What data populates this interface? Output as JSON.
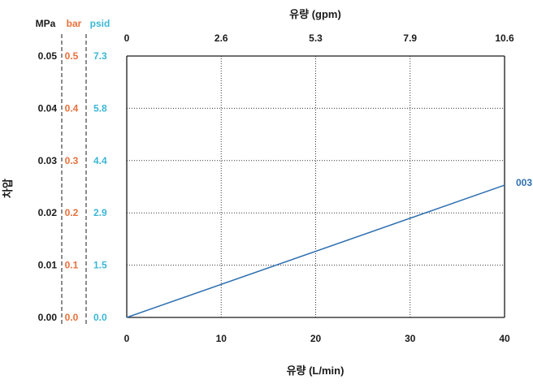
{
  "colors": {
    "line": "#2e6fb0",
    "axis": "#1a1a1a",
    "grid": "#333333",
    "mpa_text": "#1a1a1a",
    "bar_text": "#e8703a",
    "psid_text": "#3ab7d6"
  },
  "chart_data": {
    "type": "line",
    "xlabel_bottom": "유량 (L/min)",
    "xlabel_top": "유량 (gpm)",
    "ylabel": "차압",
    "x_ticks_bottom": [
      "0",
      "10",
      "20",
      "30",
      "40"
    ],
    "x_ticks_top": [
      "0",
      "2.6",
      "5.3",
      "7.9",
      "10.6"
    ],
    "xlim": [
      0,
      40
    ],
    "ylim": [
      0,
      0.05
    ],
    "grid": true,
    "grid_style": "dotted",
    "y_axes": [
      {
        "unit": "MPa",
        "ticks": [
          "0.00",
          "0.01",
          "0.02",
          "0.03",
          "0.04",
          "0.05"
        ]
      },
      {
        "unit": "bar",
        "ticks": [
          "0.0",
          "0.1",
          "0.2",
          "0.3",
          "0.4",
          "0.5"
        ]
      },
      {
        "unit": "psid",
        "ticks": [
          "0.0",
          "1.5",
          "2.9",
          "4.4",
          "5.8",
          "7.3"
        ]
      }
    ],
    "series": [
      {
        "name": "003",
        "x": [
          0,
          40
        ],
        "y": [
          0,
          0.0253
        ]
      }
    ]
  }
}
